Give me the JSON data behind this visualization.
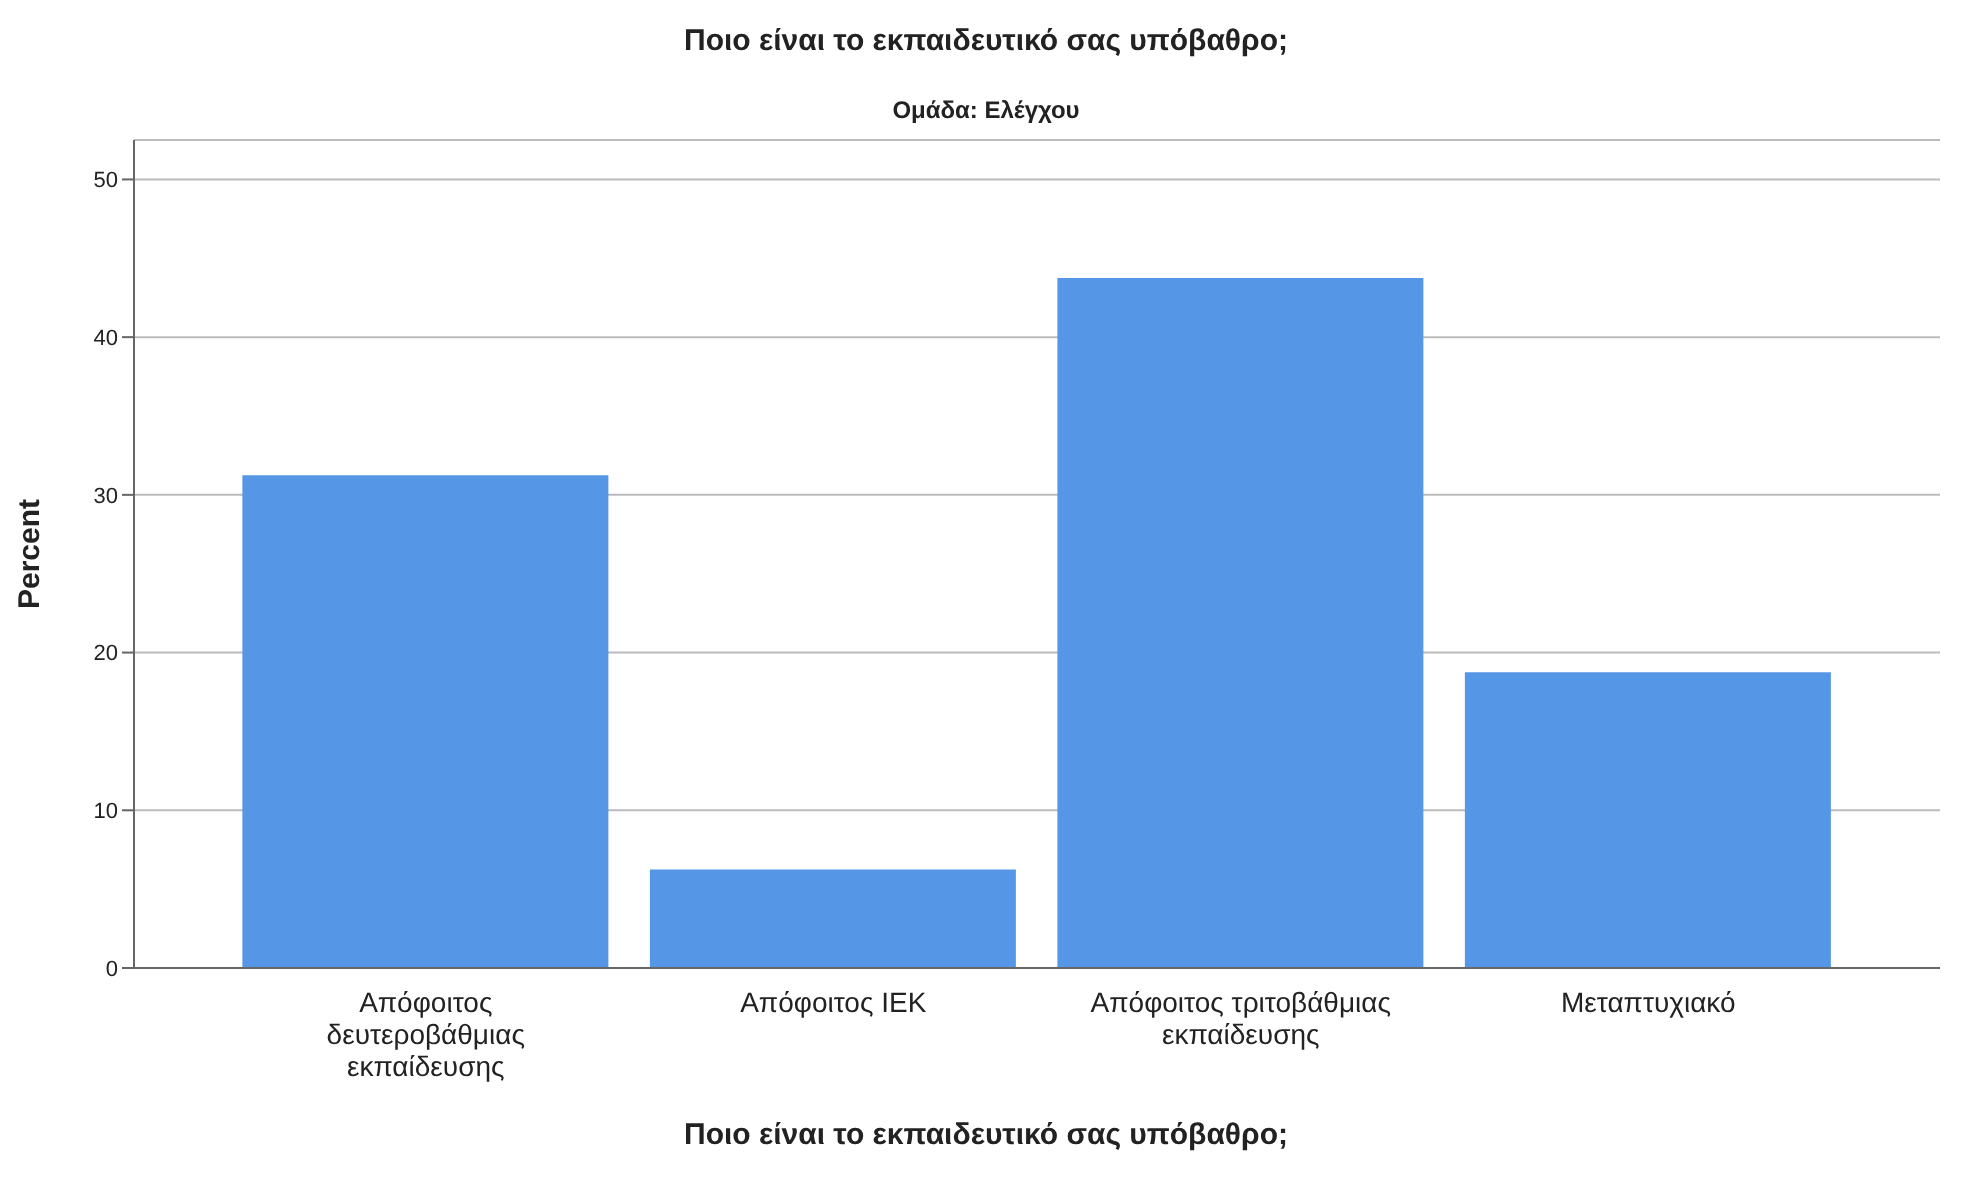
{
  "chart_data": {
    "type": "bar",
    "title": "Ποιο είναι το εκπαιδευτικό σας υπόβαθρο;",
    "subtitle": "Ομάδα: Ελέγχου",
    "xlabel": "Ποιο είναι το εκπαιδευτικό σας υπόβαθρο;",
    "ylabel": "Percent",
    "categories": [
      "Απόφοιτος δευτεροβάθμιας εκπαίδευσης",
      "Απόφοιτος ΙΕΚ",
      "Απόφοιτος τριτοβάθμιας εκπαίδευσης",
      "Μεταπτυχιακό"
    ],
    "values": [
      31.25,
      6.25,
      43.75,
      18.75
    ],
    "color": "#5596e6",
    "ylim": [
      0,
      52.5
    ],
    "yticks": [
      0,
      10,
      20,
      30,
      40,
      50
    ],
    "grid": "y"
  }
}
